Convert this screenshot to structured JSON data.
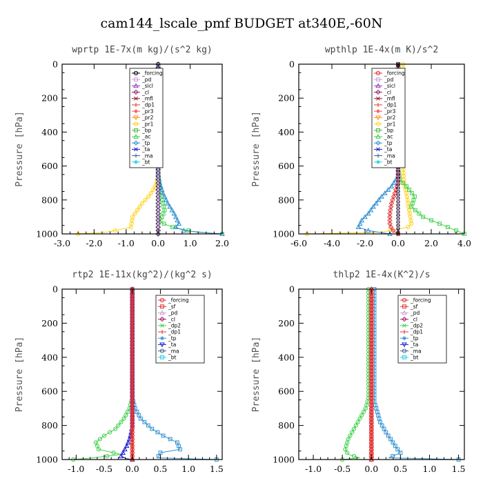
{
  "figure": {
    "suptitle": "cam144_lscale_pmf  BUDGET at340E,-60N"
  },
  "chart_data": [
    {
      "type": "line",
      "title": "wprtp  1E-7x(m kg)/(s^2 kg)",
      "ylabel": "Pressure [hPa]",
      "xlim": [
        -3.0,
        2.0
      ],
      "ylim": [
        1000,
        0
      ],
      "xticks": [
        "-3.0",
        "-2.0",
        "-1.0",
        "0.0",
        "1.0",
        "2.0"
      ],
      "xtick_values": [
        -3,
        -2,
        -1,
        0,
        1,
        2
      ],
      "yticks": [
        "0",
        "200",
        "400",
        "600",
        "800",
        "1000"
      ],
      "ytick_values": [
        0,
        200,
        400,
        600,
        800,
        1000
      ],
      "legend_position": "top-right",
      "legend": [
        "_forcing",
        "_pd",
        "_sicl",
        "_cl",
        "_mfl",
        "_dp1",
        "_pr3",
        "_pr2",
        "_pr1",
        "_bp",
        "_ac",
        "_tp",
        "_ta",
        "_ma",
        "_bt"
      ],
      "series": [
        {
          "name": "_pr1",
          "color": "#ffd21f",
          "x": [
            0,
            0,
            -0.05,
            -0.15,
            -0.3,
            -0.5,
            -0.65,
            -0.8,
            -0.85,
            -1.6,
            -2.5
          ],
          "y": [
            0,
            650,
            700,
            740,
            780,
            820,
            860,
            900,
            960,
            990,
            1000
          ]
        },
        {
          "name": "_ac",
          "color": "#3fd04a",
          "x": [
            0,
            0,
            0.05,
            0.1,
            0.15,
            0.2,
            0.12,
            0.05,
            0.45,
            1.2,
            2.0
          ],
          "y": [
            0,
            650,
            720,
            780,
            820,
            860,
            900,
            930,
            960,
            990,
            1000
          ]
        },
        {
          "name": "_tp",
          "color": "#2f8fd0",
          "x": [
            0,
            0,
            0.05,
            0.15,
            0.3,
            0.5,
            0.65,
            0.55,
            0.8,
            1.6,
            2.0
          ],
          "y": [
            0,
            650,
            700,
            760,
            820,
            880,
            940,
            960,
            980,
            995,
            1000
          ]
        },
        {
          "name": "_forcing",
          "color": "#000000",
          "x": [
            0,
            0
          ],
          "y": [
            0,
            1000
          ]
        },
        {
          "name": "_pd",
          "color": "#c8a0e0",
          "x": [
            0,
            0
          ],
          "y": [
            0,
            1000
          ]
        }
      ]
    },
    {
      "type": "line",
      "title": "wpthlp  1E-4x(m K)/s^2",
      "ylabel": "Pressure [hPa]",
      "xlim": [
        -6.0,
        4.0
      ],
      "ylim": [
        1000,
        0
      ],
      "xticks": [
        "-6.0",
        "-4.0",
        "-2.0",
        "0.0",
        "2.0",
        "4.0"
      ],
      "xtick_values": [
        -6,
        -4,
        -2,
        0,
        2,
        4
      ],
      "yticks": [
        "0",
        "200",
        "400",
        "600",
        "800",
        "1000"
      ],
      "ytick_values": [
        0,
        200,
        400,
        600,
        800,
        1000
      ],
      "legend_position": "top-right",
      "legend": [
        "_forcing",
        "_pd",
        "_sicl",
        "_cl",
        "_mfl",
        "_dp1",
        "_pr3",
        "_pr2",
        "_pr1",
        "_bp",
        "_ac",
        "_tp",
        "_ta",
        "_ma",
        "_bt"
      ],
      "series": [
        {
          "name": "_pr1",
          "color": "#ffd21f",
          "x": [
            0.3,
            0.3,
            0.35,
            0.5,
            0.6,
            0.7,
            0.8,
            0.6,
            -1.0,
            -5.5
          ],
          "y": [
            0,
            600,
            700,
            760,
            820,
            880,
            940,
            960,
            990,
            1000
          ]
        },
        {
          "name": "_ac",
          "color": "#3fd04a",
          "x": [
            0,
            0,
            0.1,
            0.5,
            1.0,
            0.8,
            1.5,
            2.5,
            3.5,
            4.0
          ],
          "y": [
            0,
            620,
            680,
            720,
            780,
            840,
            900,
            940,
            980,
            1000
          ]
        },
        {
          "name": "_tp",
          "color": "#2f8fd0",
          "x": [
            0,
            0,
            -0.4,
            -1.0,
            -1.5,
            -1.8,
            -2.2,
            -2.4,
            -1.8,
            -0.5
          ],
          "y": [
            0,
            660,
            720,
            780,
            840,
            880,
            920,
            960,
            980,
            1000
          ]
        },
        {
          "name": "_dp1",
          "color": "#e03030",
          "x": [
            0,
            0,
            -0.2,
            -0.4,
            -0.5,
            -0.5,
            -0.4,
            -0.2,
            0
          ],
          "y": [
            0,
            700,
            760,
            820,
            880,
            940,
            970,
            990,
            1000
          ]
        },
        {
          "name": "_forcing",
          "color": "#000000",
          "x": [
            0,
            0
          ],
          "y": [
            0,
            1000
          ]
        },
        {
          "name": "_pd",
          "color": "#c8a0e0",
          "x": [
            0,
            0
          ],
          "y": [
            0,
            1000
          ]
        }
      ]
    },
    {
      "type": "line",
      "title": "rtp2  1E-11x(kg^2)/(kg^2 s)",
      "ylabel": "Pressure [hPa]",
      "xlim": [
        -1.25,
        1.6
      ],
      "ylim": [
        1000,
        0
      ],
      "xticks": [
        "-1.0",
        "-0.5",
        "0.0",
        "0.5",
        "1.0",
        "1.5"
      ],
      "xtick_values": [
        -1,
        -0.5,
        0,
        0.5,
        1,
        1.5
      ],
      "yticks": [
        "0",
        "200",
        "400",
        "600",
        "800",
        "1000"
      ],
      "ytick_values": [
        0,
        200,
        400,
        600,
        800,
        1000
      ],
      "legend_position": "top-right",
      "legend": [
        "_forcing",
        "_sf",
        "_pd",
        "_cl",
        "_dp2",
        "_dp1",
        "_tp",
        "_ta",
        "_ma",
        "_bt"
      ],
      "series": [
        {
          "name": "_dp1",
          "color": "#3fd04a",
          "x": [
            0,
            0,
            -0.05,
            -0.15,
            -0.3,
            -0.5,
            -0.65,
            -0.6,
            -0.2,
            -0.7,
            -1.05
          ],
          "y": [
            0,
            640,
            700,
            760,
            820,
            860,
            900,
            940,
            970,
            990,
            1000
          ]
        },
        {
          "name": "_tp",
          "color": "#2f8fd0",
          "x": [
            0,
            0,
            0.05,
            0.15,
            0.35,
            0.55,
            0.8,
            0.85,
            0.5,
            0.45,
            1.5
          ],
          "y": [
            0,
            640,
            700,
            760,
            820,
            860,
            900,
            940,
            960,
            990,
            1000
          ]
        },
        {
          "name": "_ta",
          "color": "#1a1ad0",
          "x": [
            0,
            0,
            -0.02,
            -0.05,
            -0.1,
            -0.15,
            -0.2,
            -0.1,
            0
          ],
          "y": [
            0,
            800,
            840,
            880,
            920,
            950,
            980,
            995,
            1000
          ]
        },
        {
          "name": "_forcing",
          "color": "#e03030",
          "x": [
            0,
            0
          ],
          "y": [
            0,
            1000
          ]
        },
        {
          "name": "_sf",
          "color": "#e03030",
          "x": [
            0,
            0
          ],
          "y": [
            0,
            1000
          ]
        }
      ]
    },
    {
      "type": "line",
      "title": "thlp2  1E-4x(K^2)/s",
      "ylabel": "Pressure [hPa]",
      "xlim": [
        -1.25,
        1.6
      ],
      "ylim": [
        1000,
        0
      ],
      "xticks": [
        "-1.0",
        "-0.5",
        "0.0",
        "0.5",
        "1.0",
        "1.5"
      ],
      "xtick_values": [
        -1,
        -0.5,
        0,
        0.5,
        1,
        1.5
      ],
      "yticks": [
        "0",
        "200",
        "400",
        "600",
        "800",
        "1000"
      ],
      "ytick_values": [
        0,
        200,
        400,
        600,
        800,
        1000
      ],
      "legend_position": "top-right",
      "legend": [
        "_forcing",
        "_sf",
        "_pd",
        "_cl",
        "_dp2",
        "_dp1",
        "_tp",
        "_ta",
        "_ma",
        "_bt"
      ],
      "series": [
        {
          "name": "_dp1",
          "color": "#3fd04a",
          "x": [
            -0.05,
            -0.05,
            -0.1,
            -0.2,
            -0.3,
            -0.4,
            -0.45,
            -0.4,
            -0.2,
            -0.5
          ],
          "y": [
            0,
            640,
            700,
            760,
            820,
            880,
            940,
            970,
            990,
            1000
          ]
        },
        {
          "name": "_tp",
          "color": "#2f8fd0",
          "x": [
            0.05,
            0.05,
            0.1,
            0.15,
            0.25,
            0.35,
            0.45,
            0.5,
            0.3,
            1.5
          ],
          "y": [
            0,
            660,
            720,
            780,
            840,
            890,
            940,
            960,
            990,
            1000
          ]
        },
        {
          "name": "_forcing",
          "color": "#e03030",
          "x": [
            0,
            0
          ],
          "y": [
            0,
            1000
          ]
        },
        {
          "name": "_sf",
          "color": "#e03030",
          "x": [
            0,
            0
          ],
          "y": [
            0,
            1000
          ]
        }
      ]
    }
  ]
}
